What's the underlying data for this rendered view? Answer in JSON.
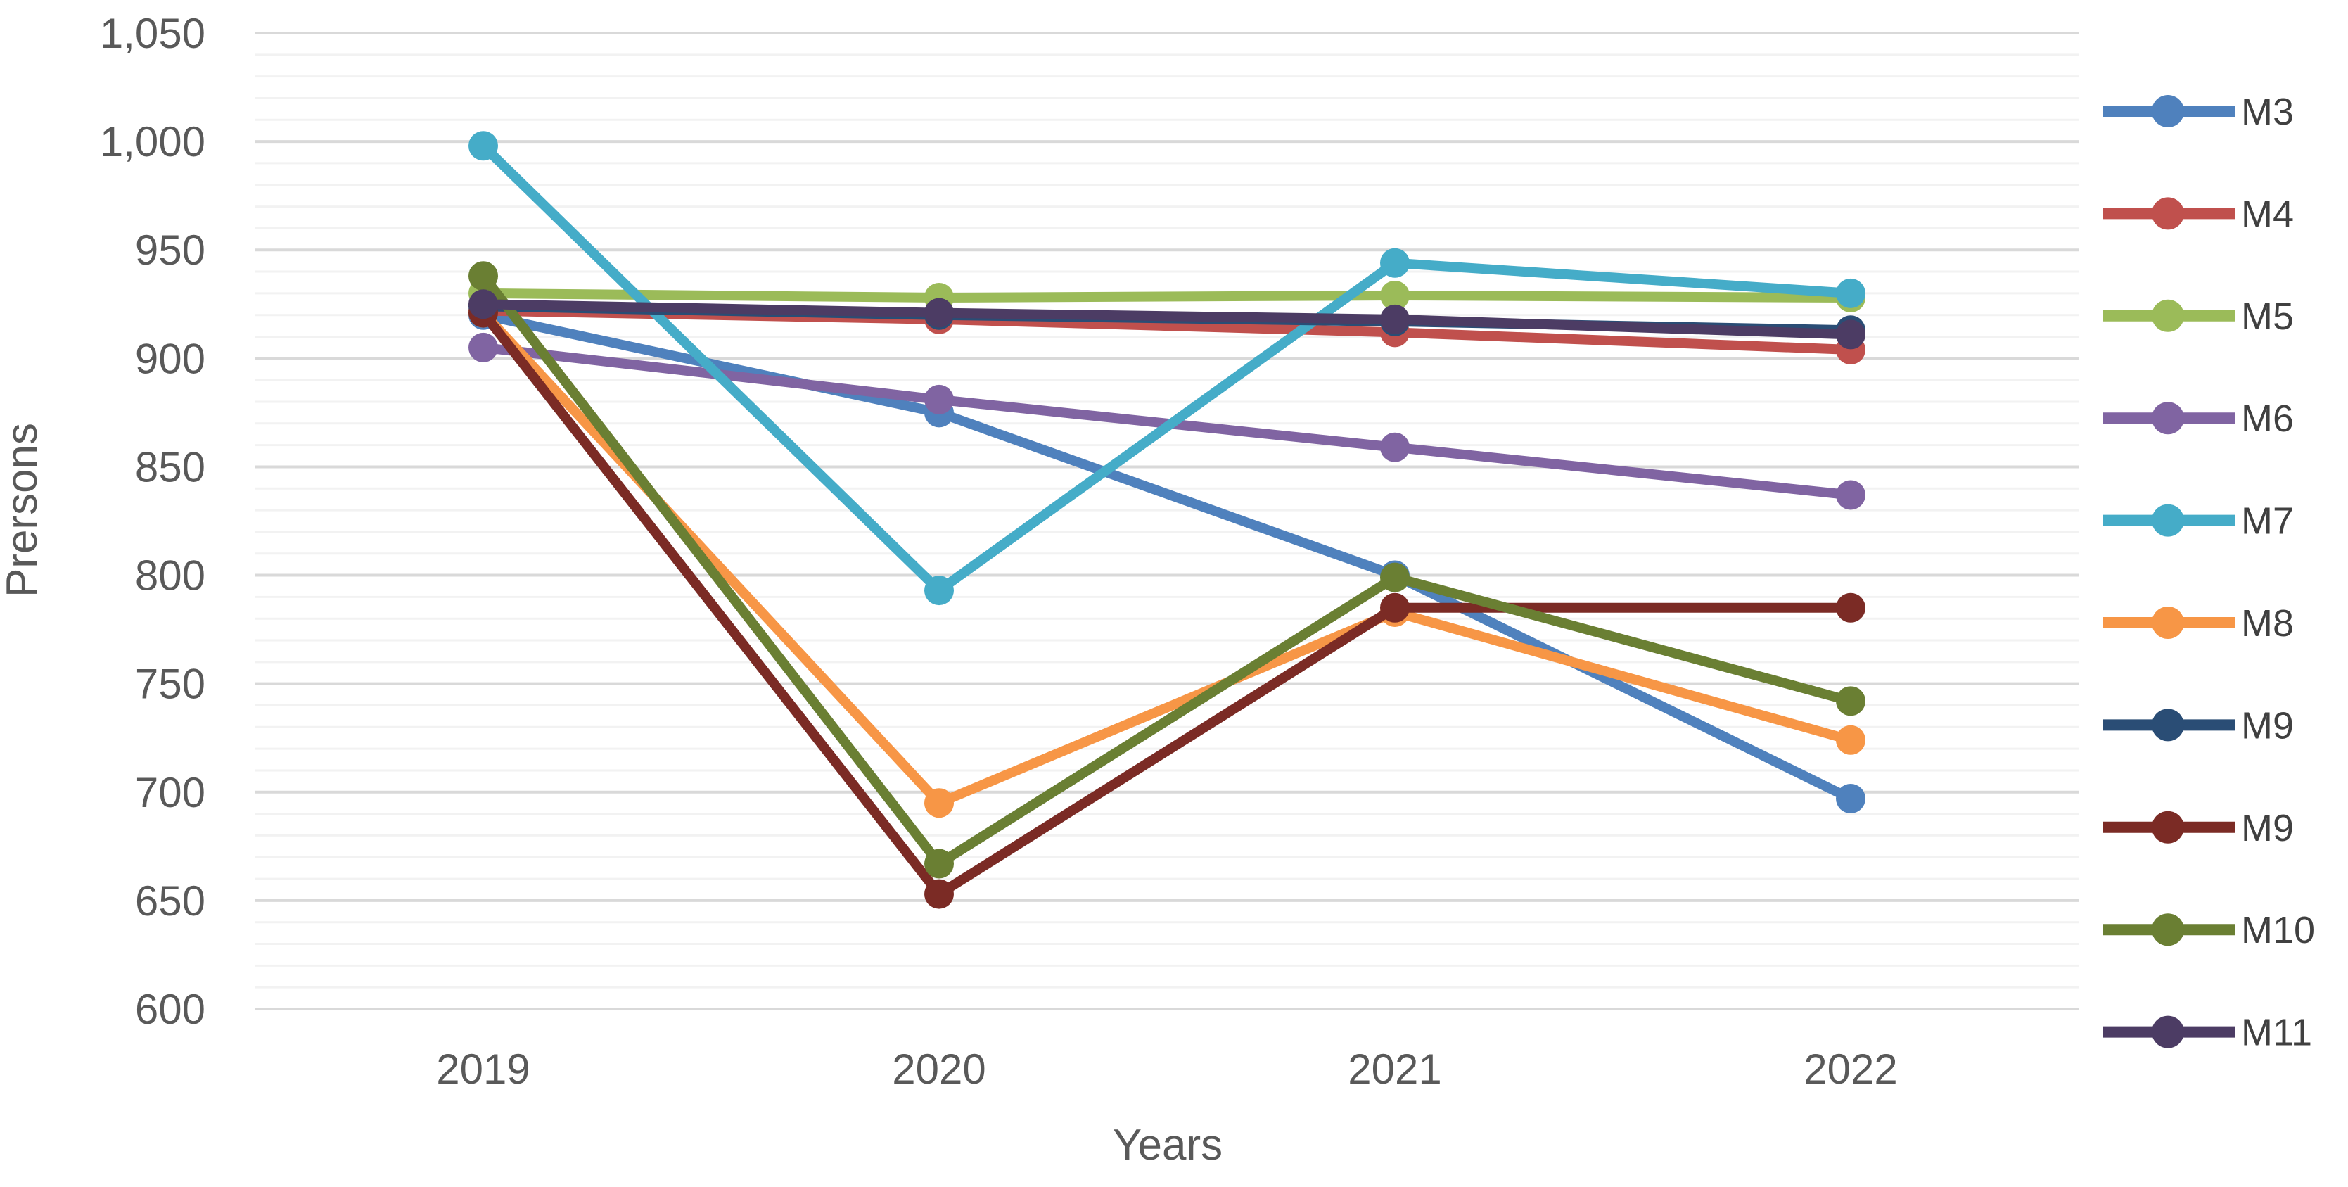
{
  "chart_data": {
    "type": "line",
    "title": "",
    "xlabel": "Years",
    "ylabel": "Prersons",
    "categories": [
      "2019",
      "2020",
      "2021",
      "2022"
    ],
    "y_axis": {
      "min": 600,
      "max": 1050,
      "major_step": 50,
      "minor_step": 10,
      "ticks": [
        1050,
        1000,
        950,
        900,
        850,
        800,
        750,
        700,
        650,
        600
      ],
      "tick_labels": [
        "1,050",
        "1,000",
        "950",
        "900",
        "850",
        "800",
        "750",
        "700",
        "650",
        "600"
      ]
    },
    "grid": {
      "major_color": "#d9d9d9",
      "minor_color": "#f2f2f2",
      "show_minor": true
    },
    "legend_position": "right",
    "series": [
      {
        "name": "M3",
        "color": "#4f81bd",
        "values": [
          920,
          875,
          800,
          697
        ]
      },
      {
        "name": "M4",
        "color": "#c0504d",
        "values": [
          922,
          918,
          912,
          904
        ]
      },
      {
        "name": "M5",
        "color": "#9bbb59",
        "values": [
          930,
          928,
          929,
          928
        ]
      },
      {
        "name": "M6",
        "color": "#8064a2",
        "values": [
          905,
          881,
          859,
          837
        ]
      },
      {
        "name": "M7",
        "color": "#45acc8",
        "values": [
          998,
          793,
          944,
          930
        ]
      },
      {
        "name": "M8",
        "color": "#f79646",
        "values": [
          921,
          695,
          783,
          724
        ]
      },
      {
        "name": "M9",
        "color": "#2a4d75",
        "values": [
          924,
          920,
          917,
          913
        ]
      },
      {
        "name": "M9",
        "color": "#7b2b25",
        "values": [
          921,
          653,
          785,
          785
        ]
      },
      {
        "name": "M10",
        "color": "#6a7f33",
        "values": [
          938,
          667,
          799,
          742
        ]
      },
      {
        "name": "M11",
        "color": "#4c3c64",
        "values": [
          925,
          921,
          918,
          911
        ]
      }
    ],
    "text_color": "#595959",
    "legend_text_color": "#404040"
  }
}
